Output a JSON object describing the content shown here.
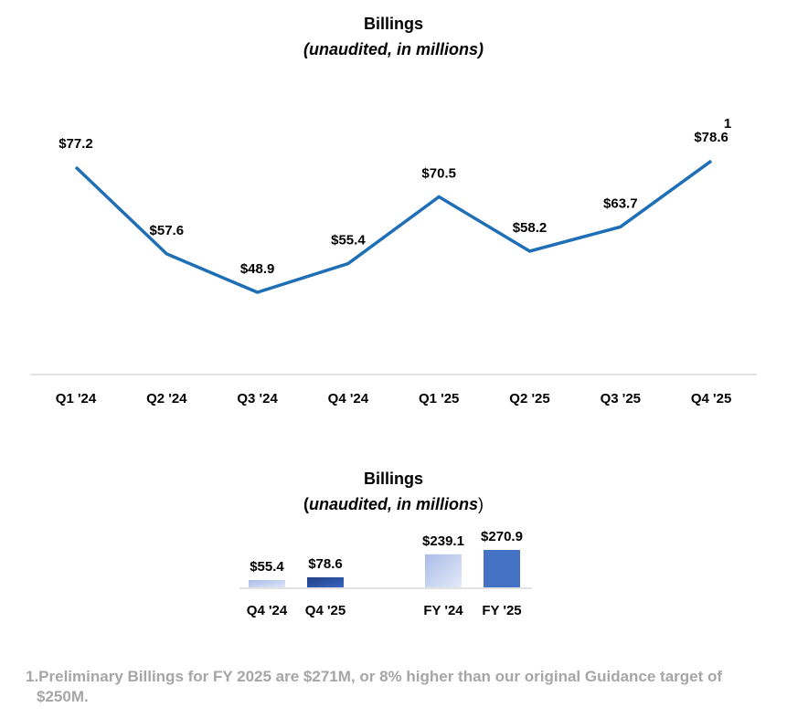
{
  "chart_data": [
    {
      "type": "line",
      "title": "Billings",
      "subtitle": "(unaudited, in millions)",
      "categories": [
        "Q1 '24",
        "Q2 '24",
        "Q3 '24",
        "Q4 '24",
        "Q1 '25",
        "Q2 '25",
        "Q3 '25",
        "Q4 '25"
      ],
      "values": [
        77.2,
        57.6,
        48.9,
        55.4,
        70.5,
        58.2,
        63.7,
        78.6
      ],
      "data_labels": [
        "$77.2",
        "$57.6",
        "$48.9",
        "$55.4",
        "$70.5",
        "$58.2",
        "$63.7",
        "$78.6"
      ],
      "annotations": [
        {
          "category": "Q4 '25",
          "text": "1"
        }
      ],
      "xlabel": "",
      "ylabel": "",
      "grid": false,
      "color": "#1f6fb7"
    },
    {
      "type": "bar",
      "title": "Billings",
      "subtitle": "(unaudited, in millions)",
      "categories": [
        "Q4 '24",
        "Q4 '25",
        "FY '24",
        "FY '25"
      ],
      "values": [
        55.4,
        78.6,
        239.1,
        270.9
      ],
      "data_labels": [
        "$55.4",
        "$78.6",
        "$239.1",
        "$270.9"
      ],
      "colors": [
        "#b4c3ea",
        "#2e56a8",
        "#c2cff0",
        "#4472c4"
      ],
      "xlabel": "",
      "ylabel": "",
      "grid": false
    }
  ],
  "line_chart": {
    "title": "Billings",
    "subtitle": "(unaudited, in millions)",
    "footnote_marker": "1"
  },
  "bar_chart": {
    "title": "Billings",
    "subtitle_open": "(",
    "subtitle_italic": "unaudited, in millions",
    "subtitle_close": ")"
  },
  "footnote": {
    "line1": "1.Preliminary Billings for FY 2025 are $271M, or 8% higher than our original Guidance target of",
    "line2": "$250M."
  }
}
